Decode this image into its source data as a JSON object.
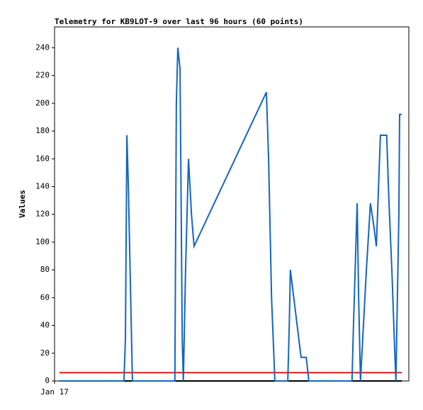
{
  "chart_data": {
    "type": "line",
    "title": "Telemetry for KB9LOT-9 over last 96 hours (60 points)",
    "y_label": "Values",
    "x": [
      1.3,
      4.4,
      7.3,
      10.2,
      13.1,
      15.9,
      18.8,
      19.2,
      19.6,
      20.0,
      21.1,
      23.0,
      25.0,
      26.9,
      28.8,
      30.7,
      32.6,
      33.0,
      33.4,
      34.0,
      34.6,
      34.9,
      35.5,
      36.3,
      37.1,
      37.8,
      57.4,
      58.0,
      58.8,
      59.7,
      61.1,
      62.0,
      63.2,
      63.6,
      63.9,
      66.8,
      68.2,
      68.9,
      71.6,
      74.5,
      77.4,
      79.3,
      80.6,
      81.0,
      82.0,
      82.4,
      82.9,
      84.5,
      85.6,
      86.6,
      87.2,
      88.3,
      90.0,
      90.6,
      91.4,
      92.2,
      92.5,
      93.3,
      93.5,
      94.1
    ],
    "series": [
      {
        "color": "#1565c0",
        "values": [
          0,
          0,
          0,
          0,
          0,
          0,
          0,
          30,
          177,
          140,
          0,
          0,
          0,
          0,
          0,
          0,
          0,
          200,
          240,
          225,
          30,
          0,
          80,
          160,
          120,
          97,
          208,
          160,
          60,
          0,
          0,
          0,
          0,
          40,
          80,
          17,
          17,
          0,
          0,
          0,
          0,
          0,
          0,
          40,
          128,
          60,
          0,
          80,
          128,
          110,
          97,
          177,
          177,
          130,
          80,
          20,
          0,
          120,
          192,
          192
        ]
      },
      {
        "color": "#e41a1c",
        "values": [
          6,
          6,
          6,
          6,
          6,
          6,
          6,
          6,
          6,
          6,
          6,
          6,
          6,
          6,
          6,
          6,
          6,
          6,
          6,
          6,
          6,
          6,
          6,
          6,
          6,
          6,
          6,
          6,
          6,
          6,
          6,
          6,
          6,
          6,
          6,
          6,
          6,
          6,
          6,
          6,
          6,
          6,
          6,
          6,
          6,
          6,
          6,
          6,
          6,
          6,
          6,
          6,
          6,
          6,
          6,
          6,
          6,
          6,
          6,
          6
        ]
      },
      {
        "color": "#000000",
        "values": [
          0,
          0,
          0,
          0,
          0,
          0,
          0,
          0,
          0,
          0,
          0,
          0,
          0,
          0,
          0,
          0,
          0,
          0,
          0,
          0,
          0,
          0,
          0,
          0,
          0,
          0,
          0,
          0,
          0,
          0,
          0,
          0,
          0,
          0,
          0,
          0,
          0,
          0,
          0,
          0,
          0,
          0,
          0,
          0,
          0,
          0,
          0,
          0,
          0,
          0,
          0,
          0,
          0,
          0,
          0,
          0,
          0,
          0,
          0,
          0
        ]
      }
    ],
    "xlim": [
      0,
      96
    ],
    "xticks": [
      {
        "value": 0,
        "label": "Jan 17"
      }
    ],
    "ylim": [
      0,
      255
    ],
    "yticks": [
      0,
      20,
      40,
      60,
      80,
      100,
      120,
      140,
      160,
      180,
      200,
      220,
      240
    ],
    "grid": false
  }
}
